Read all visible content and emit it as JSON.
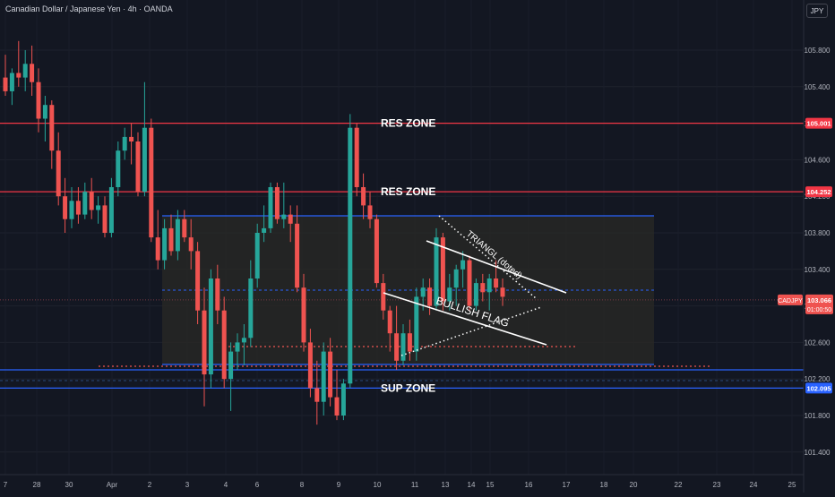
{
  "header": {
    "title": "Canadian Dollar / Japanese Yen · 4h · OANDA",
    "currency_button": "JPY"
  },
  "colors": {
    "background": "#131722",
    "up": "#26a69a",
    "down": "#ef5350",
    "resistance": "#f23645",
    "support": "#2962ff",
    "range_box": "#2a2a25",
    "drawing": "#ffffff"
  },
  "chart_data": {
    "type": "candlestick",
    "symbol": "CADJPY",
    "timeframe": "4h",
    "ylim": [
      101.3,
      106.1
    ],
    "y_ticks": [
      101.4,
      101.8,
      102.2,
      102.6,
      103.0,
      103.4,
      103.8,
      104.2,
      104.6,
      105.0,
      105.4,
      105.8
    ],
    "y_tick_labels": [
      "101.400",
      "101.800",
      "102.200",
      "102.600",
      "103.000",
      "103.400",
      "103.800",
      "104.200",
      "104.600",
      "105.000",
      "105.400",
      "105.800"
    ],
    "x_ticks": [
      "7",
      "28",
      "30",
      "Apr",
      "2",
      "3",
      "4",
      "6",
      "8",
      "9",
      "10",
      "11",
      "13",
      "14",
      "15",
      "16",
      "17",
      "18",
      "20",
      "22",
      "23",
      "24",
      "25"
    ],
    "candles": [
      {
        "o": 105.5,
        "h": 105.75,
        "l": 105.3,
        "c": 105.35
      },
      {
        "o": 105.35,
        "h": 105.6,
        "l": 105.2,
        "c": 105.55
      },
      {
        "o": 105.55,
        "h": 105.9,
        "l": 105.4,
        "c": 105.5
      },
      {
        "o": 105.5,
        "h": 105.8,
        "l": 105.35,
        "c": 105.65
      },
      {
        "o": 105.65,
        "h": 105.85,
        "l": 105.3,
        "c": 105.45
      },
      {
        "o": 105.45,
        "h": 105.6,
        "l": 104.9,
        "c": 105.05
      },
      {
        "o": 105.05,
        "h": 105.3,
        "l": 104.8,
        "c": 105.2
      },
      {
        "o": 105.2,
        "h": 105.25,
        "l": 104.5,
        "c": 104.7
      },
      {
        "o": 104.7,
        "h": 104.9,
        "l": 104.1,
        "c": 104.2
      },
      {
        "o": 104.2,
        "h": 104.4,
        "l": 103.8,
        "c": 103.95
      },
      {
        "o": 103.95,
        "h": 104.3,
        "l": 103.85,
        "c": 104.15
      },
      {
        "o": 104.15,
        "h": 104.3,
        "l": 103.9,
        "c": 104.0
      },
      {
        "o": 104.0,
        "h": 104.35,
        "l": 103.95,
        "c": 104.25
      },
      {
        "o": 104.25,
        "h": 104.4,
        "l": 103.95,
        "c": 104.05
      },
      {
        "o": 104.05,
        "h": 104.2,
        "l": 103.9,
        "c": 104.1
      },
      {
        "o": 104.1,
        "h": 104.2,
        "l": 103.75,
        "c": 103.8
      },
      {
        "o": 103.8,
        "h": 104.4,
        "l": 103.75,
        "c": 104.3
      },
      {
        "o": 104.3,
        "h": 104.8,
        "l": 104.2,
        "c": 104.7
      },
      {
        "o": 104.7,
        "h": 104.95,
        "l": 104.6,
        "c": 104.85
      },
      {
        "o": 104.85,
        "h": 105.0,
        "l": 104.55,
        "c": 104.8
      },
      {
        "o": 104.8,
        "h": 104.9,
        "l": 104.2,
        "c": 104.25
      },
      {
        "o": 104.25,
        "h": 105.45,
        "l": 104.2,
        "c": 104.95
      },
      {
        "o": 104.95,
        "h": 105.05,
        "l": 103.7,
        "c": 103.75
      },
      {
        "o": 103.75,
        "h": 104.05,
        "l": 103.4,
        "c": 103.5
      },
      {
        "o": 103.5,
        "h": 103.95,
        "l": 103.4,
        "c": 103.85
      },
      {
        "o": 103.85,
        "h": 104.0,
        "l": 103.55,
        "c": 103.6
      },
      {
        "o": 103.6,
        "h": 104.05,
        "l": 103.5,
        "c": 103.95
      },
      {
        "o": 103.95,
        "h": 104.05,
        "l": 103.7,
        "c": 103.75
      },
      {
        "o": 103.75,
        "h": 103.95,
        "l": 103.4,
        "c": 103.6
      },
      {
        "o": 103.6,
        "h": 103.7,
        "l": 102.8,
        "c": 102.95
      },
      {
        "o": 102.95,
        "h": 103.2,
        "l": 101.9,
        "c": 102.25
      },
      {
        "o": 102.25,
        "h": 103.4,
        "l": 102.1,
        "c": 103.3
      },
      {
        "o": 103.3,
        "h": 103.45,
        "l": 102.8,
        "c": 102.95
      },
      {
        "o": 102.95,
        "h": 103.1,
        "l": 102.1,
        "c": 102.2
      },
      {
        "o": 102.2,
        "h": 102.6,
        "l": 101.85,
        "c": 102.5
      },
      {
        "o": 102.5,
        "h": 102.7,
        "l": 102.3,
        "c": 102.6
      },
      {
        "o": 102.6,
        "h": 102.8,
        "l": 102.35,
        "c": 102.65
      },
      {
        "o": 102.65,
        "h": 103.5,
        "l": 102.55,
        "c": 103.3
      },
      {
        "o": 103.3,
        "h": 103.9,
        "l": 103.2,
        "c": 103.8
      },
      {
        "o": 103.8,
        "h": 104.1,
        "l": 103.7,
        "c": 103.85
      },
      {
        "o": 103.85,
        "h": 104.35,
        "l": 103.8,
        "c": 104.3
      },
      {
        "o": 104.3,
        "h": 104.35,
        "l": 103.9,
        "c": 103.95
      },
      {
        "o": 103.95,
        "h": 104.35,
        "l": 103.85,
        "c": 104.0
      },
      {
        "o": 104.0,
        "h": 104.1,
        "l": 103.7,
        "c": 103.9
      },
      {
        "o": 103.9,
        "h": 104.1,
        "l": 103.15,
        "c": 103.2
      },
      {
        "o": 103.2,
        "h": 103.35,
        "l": 102.5,
        "c": 102.6
      },
      {
        "o": 102.6,
        "h": 102.75,
        "l": 102.0,
        "c": 102.1
      },
      {
        "o": 102.1,
        "h": 102.4,
        "l": 101.7,
        "c": 101.95
      },
      {
        "o": 101.95,
        "h": 102.6,
        "l": 101.8,
        "c": 102.5
      },
      {
        "o": 102.5,
        "h": 102.65,
        "l": 101.9,
        "c": 102.0
      },
      {
        "o": 102.0,
        "h": 102.3,
        "l": 101.75,
        "c": 101.8
      },
      {
        "o": 101.8,
        "h": 102.2,
        "l": 101.75,
        "c": 102.15
      },
      {
        "o": 102.15,
        "h": 105.1,
        "l": 102.1,
        "c": 104.95
      },
      {
        "o": 104.95,
        "h": 105.0,
        "l": 104.2,
        "c": 104.3
      },
      {
        "o": 104.3,
        "h": 104.45,
        "l": 103.95,
        "c": 104.1
      },
      {
        "o": 104.1,
        "h": 104.25,
        "l": 103.85,
        "c": 103.95
      },
      {
        "o": 103.95,
        "h": 104.0,
        "l": 103.2,
        "c": 103.25
      },
      {
        "o": 103.25,
        "h": 103.35,
        "l": 102.85,
        "c": 102.95
      },
      {
        "o": 102.95,
        "h": 103.0,
        "l": 102.5,
        "c": 102.7
      },
      {
        "o": 102.7,
        "h": 103.0,
        "l": 102.3,
        "c": 102.4
      },
      {
        "o": 102.4,
        "h": 102.8,
        "l": 102.35,
        "c": 102.7
      },
      {
        "o": 102.7,
        "h": 102.85,
        "l": 102.4,
        "c": 102.5
      },
      {
        "o": 102.5,
        "h": 103.2,
        "l": 102.4,
        "c": 103.1
      },
      {
        "o": 103.1,
        "h": 103.3,
        "l": 102.95,
        "c": 103.2
      },
      {
        "o": 103.2,
        "h": 103.3,
        "l": 102.9,
        "c": 103.0
      },
      {
        "o": 103.0,
        "h": 103.85,
        "l": 102.95,
        "c": 103.75
      },
      {
        "o": 103.75,
        "h": 103.8,
        "l": 102.95,
        "c": 103.05
      },
      {
        "o": 103.05,
        "h": 103.35,
        "l": 102.95,
        "c": 103.2
      },
      {
        "o": 103.2,
        "h": 103.45,
        "l": 103.0,
        "c": 103.4
      },
      {
        "o": 103.4,
        "h": 103.6,
        "l": 103.2,
        "c": 103.5
      },
      {
        "o": 103.5,
        "h": 103.55,
        "l": 102.95,
        "c": 103.0
      },
      {
        "o": 103.0,
        "h": 103.3,
        "l": 102.95,
        "c": 103.25
      },
      {
        "o": 103.25,
        "h": 103.35,
        "l": 103.05,
        "c": 103.15
      },
      {
        "o": 103.15,
        "h": 103.35,
        "l": 102.95,
        "c": 103.3
      },
      {
        "o": 103.3,
        "h": 103.5,
        "l": 103.15,
        "c": 103.2
      },
      {
        "o": 103.2,
        "h": 103.3,
        "l": 103.0,
        "c": 103.1
      }
    ],
    "levels": [
      {
        "name": "RES ZONE",
        "price": 105.0,
        "label": "105.001",
        "color": "#f23645"
      },
      {
        "name": "RES ZONE",
        "price": 104.25,
        "label": "104.252",
        "color": "#f23645"
      },
      {
        "name": "SUP ZONE",
        "price": 102.1,
        "label": "102.095",
        "color": "#2962ff"
      }
    ],
    "current_price": {
      "symbol": "CADJPY",
      "price": 103.066,
      "label": "103.066",
      "countdown": "01:00:50"
    },
    "annotations": [
      "RES ZONE",
      "RES ZONE",
      "SUP ZONE",
      "TRIANGL (doted)",
      "BULLISH FLAG"
    ]
  }
}
